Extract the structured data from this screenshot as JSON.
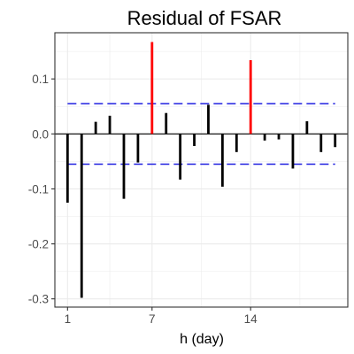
{
  "chart_data": {
    "type": "bar",
    "title": "Residual of FSAR",
    "xlabel": "h (day)",
    "ylabel": "",
    "x": [
      1,
      2,
      3,
      4,
      5,
      6,
      7,
      8,
      9,
      10,
      11,
      12,
      13,
      14,
      15,
      16,
      17,
      18,
      19,
      20
    ],
    "values": [
      -0.125,
      -0.298,
      0.022,
      0.033,
      -0.118,
      -0.052,
      0.167,
      0.038,
      -0.083,
      -0.022,
      0.053,
      -0.096,
      -0.033,
      0.134,
      -0.012,
      -0.01,
      -0.063,
      0.023,
      -0.033,
      -0.024
    ],
    "highlight_lags": [
      7,
      14
    ],
    "confidence_bounds": [
      0.055,
      -0.055
    ],
    "xlim": [
      0.1,
      20.9
    ],
    "ylim": [
      -0.315,
      0.184
    ],
    "x_ticks": [
      1,
      7,
      14
    ],
    "y_ticks": [
      0.1,
      0.0,
      -0.1,
      -0.2,
      -0.3
    ],
    "y_tick_labels": [
      "0.1",
      "0.0",
      "-0.1",
      "-0.2",
      "-0.3"
    ],
    "grid": true,
    "colors": {
      "bar": "#000000",
      "highlight": "#ff0000",
      "bound": "#2020e0",
      "grid": "#ebebeb",
      "panel_border": "#333333"
    }
  }
}
